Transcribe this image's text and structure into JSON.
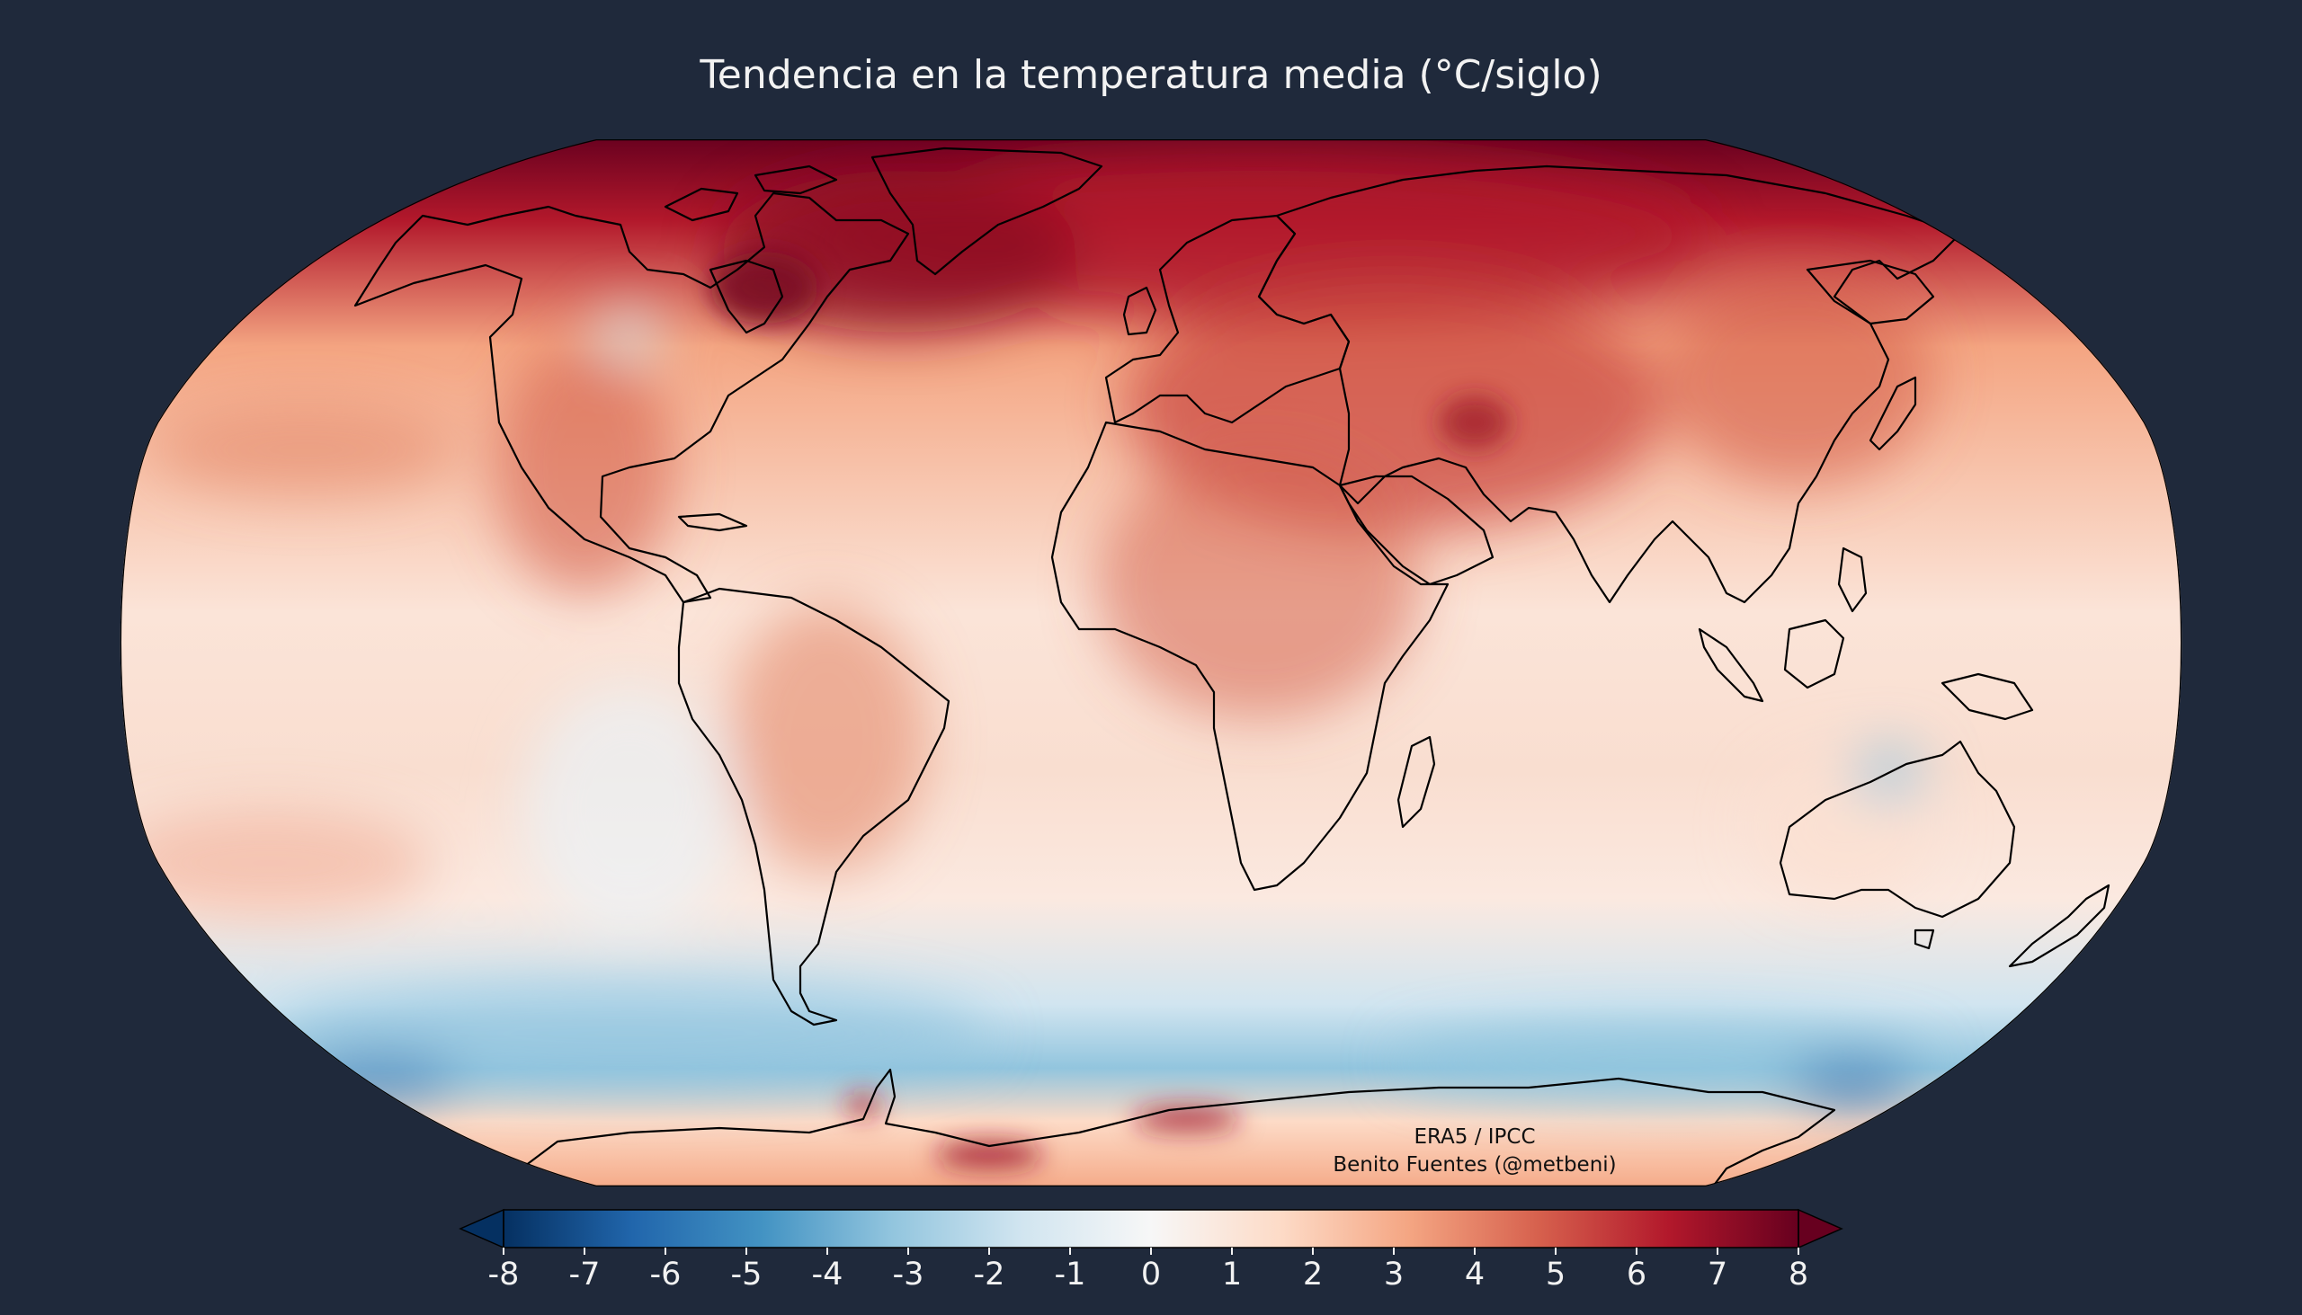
{
  "title": "Tendencia en la temperatura media ($^\\circ$C/siglo)",
  "title_display": "Tendencia en la temperatura media (°C/siglo)",
  "credit": {
    "line1": "ERA5 / IPCC",
    "line2": "Benito Fuentes (@metbeni)"
  },
  "colorbar": {
    "colormap": "RdBu_r",
    "extend": "both",
    "min": -8,
    "max": 8,
    "ticks": [
      "-8",
      "-7",
      "-6",
      "-5",
      "-4",
      "-3",
      "-2",
      "-1",
      "0",
      "1",
      "2",
      "3",
      "4",
      "5",
      "6",
      "7",
      "8"
    ],
    "colors": [
      "#053061",
      "#2166ac",
      "#4393c3",
      "#92c5de",
      "#d1e5f0",
      "#f7f7f7",
      "#fddbc7",
      "#f4a582",
      "#d6604d",
      "#b2182b",
      "#67001f"
    ]
  },
  "colors": {
    "background": "#1f293b",
    "coastline": "#000000",
    "text": "#f2f2f2"
  }
}
